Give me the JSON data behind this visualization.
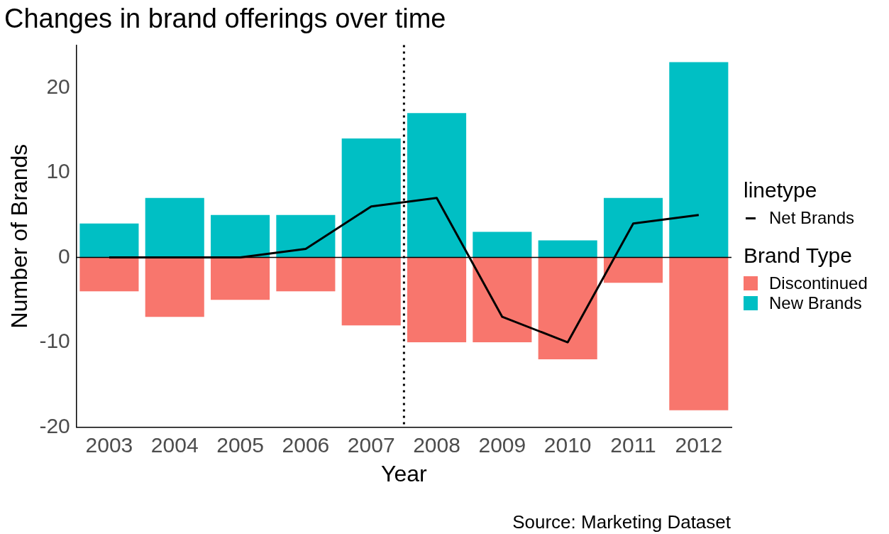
{
  "chart_data": {
    "type": "bar",
    "title": "Changes in brand offerings over time",
    "xlabel": "Year",
    "ylabel": "Number of Brands",
    "legend_title": "Brand Type",
    "annotations": [
      "linetype",
      "Source: Marketing Dataset"
    ],
    "x": [
      2003,
      2004,
      2005,
      2006,
      2007,
      2008,
      2009,
      2010,
      2011,
      2012
    ],
    "xlim": [
      2002.5,
      2012.5
    ],
    "xticks": [
      2003,
      2004,
      2005,
      2006,
      2007,
      2008,
      2009,
      2010,
      2011,
      2012
    ],
    "ylim": [
      -20,
      25
    ],
    "yticks": [
      -20,
      -10,
      0,
      10,
      20
    ],
    "stacked": true,
    "grid": false,
    "legend": "right",
    "series": [
      {
        "name": "Discontinued",
        "color": "#f8766d",
        "values": [
          -4,
          -7,
          -5,
          -4,
          -8,
          -10,
          -10,
          -12,
          -3,
          -18
        ]
      },
      {
        "name": "New Brands",
        "color": "#00bfc4",
        "values": [
          4,
          7,
          5,
          5,
          14,
          17,
          3,
          2,
          7,
          23
        ]
      },
      {
        "name": "Net Brands",
        "type": "line",
        "color": "#000000",
        "marker": "none",
        "line_style": "solid",
        "values": [
          0,
          0,
          0,
          1,
          6,
          7,
          -7,
          -10,
          4,
          5
        ]
      }
    ],
    "ref_lines": [
      {
        "axis": "y",
        "value": 0,
        "color": "#000000",
        "line_style": "solid"
      },
      {
        "axis": "x",
        "value": 2007.5,
        "color": "#000000",
        "line_style": "dotted"
      }
    ]
  }
}
